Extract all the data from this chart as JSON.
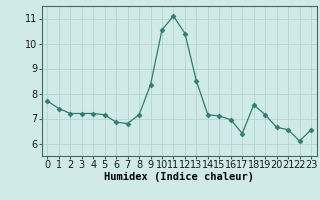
{
  "x": [
    0,
    1,
    2,
    3,
    4,
    5,
    6,
    7,
    8,
    9,
    10,
    11,
    12,
    13,
    14,
    15,
    16,
    17,
    18,
    19,
    20,
    21,
    22,
    23
  ],
  "y": [
    7.7,
    7.4,
    7.2,
    7.2,
    7.2,
    7.15,
    6.85,
    6.8,
    7.15,
    8.35,
    10.55,
    11.1,
    10.4,
    8.5,
    7.15,
    7.1,
    6.95,
    6.4,
    7.55,
    7.15,
    6.65,
    6.55,
    6.1,
    6.55
  ],
  "line_color": "#2e7d70",
  "marker": "D",
  "marker_size": 2.5,
  "bg_color": "#d0eae8",
  "grid_color": "#b0d0ce",
  "xlabel": "Humidex (Indice chaleur)",
  "xlabel_fontsize": 7.5,
  "tick_fontsize": 7,
  "ylim": [
    5.5,
    11.5
  ],
  "xlim": [
    -0.5,
    23.5
  ],
  "yticks": [
    6,
    7,
    8,
    9,
    10,
    11
  ],
  "xticks": [
    0,
    1,
    2,
    3,
    4,
    5,
    6,
    7,
    8,
    9,
    10,
    11,
    12,
    13,
    14,
    15,
    16,
    17,
    18,
    19,
    20,
    21,
    22,
    23
  ]
}
